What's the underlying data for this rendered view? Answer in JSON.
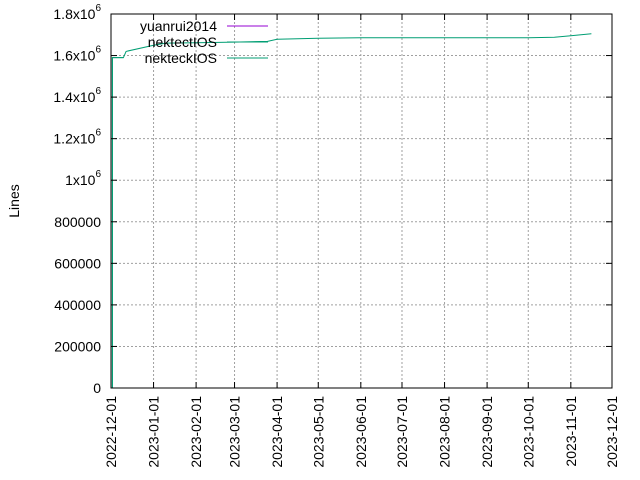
{
  "chart_data": {
    "type": "line",
    "ylabel": "Lines",
    "ylim": [
      0,
      1800000
    ],
    "xlim": [
      "2022-12-01",
      "2023-12-01"
    ],
    "grid": true,
    "legend_position": "top-left",
    "y_ticks": [
      {
        "value": 0,
        "mant": "0",
        "exp": ""
      },
      {
        "value": 200000,
        "mant": "200000",
        "exp": ""
      },
      {
        "value": 400000,
        "mant": "400000",
        "exp": ""
      },
      {
        "value": 600000,
        "mant": "600000",
        "exp": ""
      },
      {
        "value": 800000,
        "mant": "800000",
        "exp": ""
      },
      {
        "value": 1000000,
        "mant": "1x10",
        "exp": "6"
      },
      {
        "value": 1200000,
        "mant": "1.2x10",
        "exp": "6"
      },
      {
        "value": 1400000,
        "mant": "1.4x10",
        "exp": "6"
      },
      {
        "value": 1600000,
        "mant": "1.6x10",
        "exp": "6"
      },
      {
        "value": 1800000,
        "mant": "1.8x10",
        "exp": "6"
      }
    ],
    "x_ticks": [
      "2022-12-01",
      "2023-01-01",
      "2023-02-01",
      "2023-03-01",
      "2023-04-01",
      "2023-05-01",
      "2023-06-01",
      "2023-07-01",
      "2023-08-01",
      "2023-09-01",
      "2023-10-01",
      "2023-11-01",
      "2023-12-01"
    ],
    "series": [
      {
        "name": "yuanrui2014",
        "color": "#9400d3",
        "points": []
      },
      {
        "name": "nektectIOS",
        "color": "#009e73",
        "points": [
          {
            "x": "2022-12-02",
            "y": 0
          },
          {
            "x": "2022-12-02",
            "y": 1590000
          },
          {
            "x": "2022-12-10",
            "y": 1590000
          },
          {
            "x": "2022-12-12",
            "y": 1620000
          },
          {
            "x": "2023-01-01",
            "y": 1650000
          },
          {
            "x": "2023-01-10",
            "y": 1660000
          },
          {
            "x": "2023-02-01",
            "y": 1662000
          },
          {
            "x": "2023-03-01",
            "y": 1665000
          },
          {
            "x": "2023-03-25",
            "y": 1668000
          },
          {
            "x": "2023-04-01",
            "y": 1678000
          },
          {
            "x": "2023-05-01",
            "y": 1683000
          },
          {
            "x": "2023-06-01",
            "y": 1686000
          },
          {
            "x": "2023-07-01",
            "y": 1686000
          },
          {
            "x": "2023-08-01",
            "y": 1686000
          },
          {
            "x": "2023-09-01",
            "y": 1686000
          },
          {
            "x": "2023-10-01",
            "y": 1686000
          },
          {
            "x": "2023-10-20",
            "y": 1688000
          },
          {
            "x": "2023-11-01",
            "y": 1695000
          },
          {
            "x": "2023-11-16",
            "y": 1705000
          }
        ]
      },
      {
        "name": "nekteckIOS",
        "color": "#009e73",
        "points": [
          {
            "x": "2022-12-02",
            "y": 0
          },
          {
            "x": "2022-12-02",
            "y": 1590000
          },
          {
            "x": "2022-12-10",
            "y": 1590000
          }
        ]
      }
    ]
  }
}
